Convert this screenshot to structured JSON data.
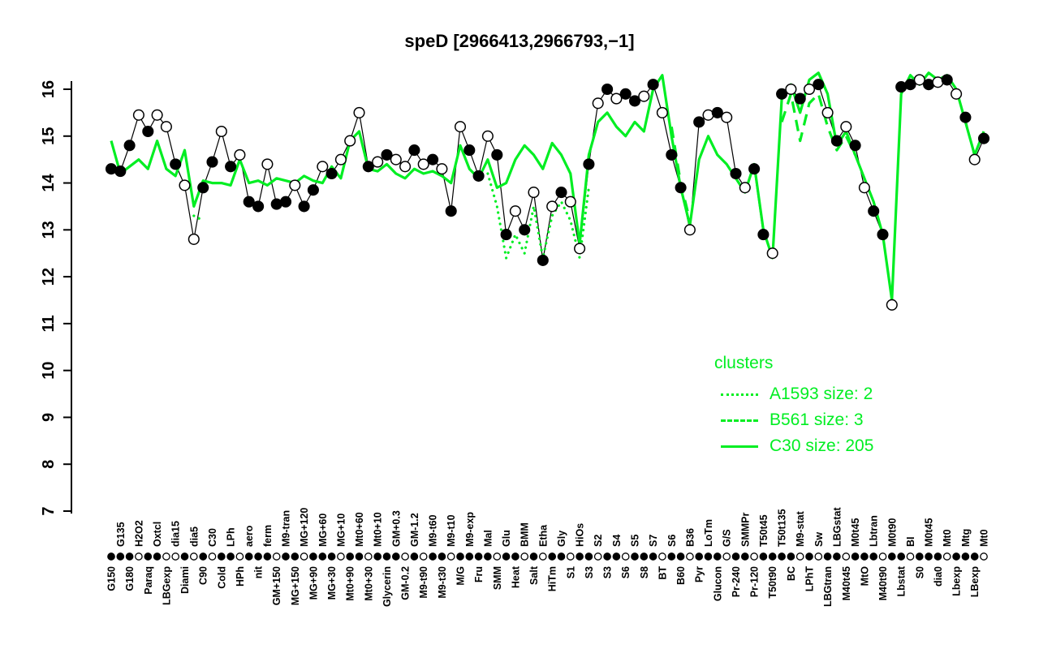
{
  "title": "speD [2966413,2966793,−1]",
  "colors": {
    "cluster": "#00ee22",
    "gene": "#000000",
    "background": "#ffffff"
  },
  "legend": {
    "title": "clusters",
    "entries": [
      {
        "label": "A1593 size: 2",
        "style": "dotted"
      },
      {
        "label": "B561 size: 3",
        "style": "dashed"
      },
      {
        "label": "C30 size: 205",
        "style": "solid"
      }
    ]
  },
  "chart_data": {
    "type": "line",
    "title": "speD [2966413,2966793,−1]",
    "ylabel": "",
    "xlabel": "",
    "ylim": [
      7,
      16.5
    ],
    "yticks": [
      7,
      8,
      9,
      10,
      11,
      12,
      13,
      14,
      15,
      16
    ],
    "grid": false,
    "legend_position": "right-middle",
    "categories": [
      "G150",
      "G135",
      "G180",
      "H2O2",
      "Paraq",
      "Oxtcl",
      "LBGexp",
      "dia15",
      "Diami",
      "dia5",
      "C90",
      "C30",
      "Cold",
      "LPh",
      "HPh",
      "aero",
      "nit",
      "ferm",
      "GM+150",
      "M9-tran",
      "MG+150",
      "MG+120",
      "MG+90",
      "MG+60",
      "MG+30",
      "MG+10",
      "Mt0+90",
      "Mt0+60",
      "Mt0+30",
      "Mt0+10",
      "Glycerin",
      "GM+0.3",
      "GM-0.2",
      "GM-1.2",
      "M9-t90",
      "M9-t60",
      "M9-t30",
      "M9-t10",
      "M/G",
      "M9-exp",
      "Fru",
      "Mal",
      "SMM",
      "Glu",
      "Heat",
      "BMM",
      "Salt",
      "Etha",
      "HiTm",
      "Gly",
      "S1",
      "HiOs",
      "S3",
      "S2",
      "S3",
      "S4",
      "S6",
      "S5",
      "S8",
      "S7",
      "BT",
      "S6",
      "B60",
      "B36",
      "Pyr",
      "LoTm",
      "Glucon",
      "G/S",
      "Pr-240",
      "SMMPr",
      "Pr-120",
      "T50t45",
      "T50t90",
      "T50t135",
      "BC",
      "M9-stat",
      "LPhT",
      "Sw",
      "LBGtran",
      "LBGstat",
      "M40t45",
      "M0t45",
      "MtO",
      "Lbtran",
      "M40t90",
      "M0t90",
      "Lbstat",
      "BI",
      "S0",
      "M0t45",
      "dia0",
      "Mt0",
      "Lbexp",
      "Mtg",
      "LBexp",
      "Mt0"
    ],
    "series": [
      {
        "name": "speD",
        "role": "gene",
        "color": "#000000",
        "marker": "circle",
        "values": [
          14.3,
          14.25,
          14.8,
          15.45,
          15.1,
          15.45,
          15.2,
          14.4,
          13.95,
          12.8,
          13.9,
          14.45,
          15.1,
          14.35,
          14.6,
          13.6,
          13.5,
          14.4,
          13.55,
          13.6,
          13.95,
          13.5,
          13.85,
          14.35,
          14.2,
          14.5,
          14.9,
          15.5,
          14.35,
          14.45,
          14.6,
          14.5,
          14.35,
          14.7,
          14.4,
          14.5,
          14.3,
          13.4,
          15.2,
          14.7,
          14.15,
          15.0,
          14.6,
          12.9,
          13.4,
          13.0,
          13.8,
          12.35,
          13.5,
          13.8,
          13.6,
          12.6,
          14.4,
          15.7,
          16.0,
          15.8,
          15.9,
          15.75,
          15.85,
          16.1,
          15.5,
          14.6,
          13.9,
          13.0,
          15.3,
          15.45,
          15.5,
          15.4,
          14.2,
          13.9,
          14.3,
          12.9,
          12.5,
          15.9,
          16.0,
          15.8,
          16.0,
          16.1,
          15.5,
          14.9,
          15.2,
          14.8,
          13.9,
          13.4,
          12.9,
          11.4,
          16.05,
          16.1,
          16.2,
          16.1,
          16.15,
          16.2,
          15.9,
          15.4,
          14.5,
          14.95
        ],
        "filled": [
          1,
          1,
          1,
          0,
          1,
          0,
          0,
          1,
          0,
          0,
          1,
          1,
          0,
          1,
          0,
          1,
          1,
          0,
          1,
          1,
          0,
          1,
          1,
          0,
          1,
          0,
          0,
          0,
          1,
          0,
          1,
          0,
          0,
          1,
          0,
          1,
          0,
          1,
          0,
          1,
          1,
          0,
          1,
          1,
          0,
          1,
          0,
          1,
          0,
          1,
          0,
          0,
          1,
          0,
          1,
          0,
          1,
          1,
          0,
          1,
          0,
          1,
          1,
          0,
          1,
          0,
          1,
          0,
          1,
          0,
          1,
          1,
          0,
          1,
          0,
          1,
          0,
          1,
          0,
          1,
          0,
          1,
          0,
          1,
          1,
          0,
          1,
          1,
          0,
          1,
          0,
          1,
          0,
          1,
          0,
          1
        ]
      },
      {
        "name": "C30 size: 205",
        "role": "cluster",
        "style": "solid",
        "color": "#00ee22",
        "values": [
          14.9,
          14.2,
          14.35,
          14.5,
          14.3,
          14.9,
          14.3,
          14.15,
          14.7,
          13.5,
          14.05,
          14.0,
          14.0,
          13.95,
          14.5,
          14.0,
          14.05,
          13.95,
          14.1,
          14.05,
          14.0,
          14.15,
          14.05,
          14.0,
          14.35,
          14.1,
          14.9,
          15.1,
          14.3,
          14.25,
          14.4,
          14.2,
          14.1,
          14.3,
          14.2,
          14.25,
          14.15,
          14.0,
          14.8,
          14.3,
          14.1,
          14.5,
          13.9,
          14.0,
          14.5,
          14.8,
          14.6,
          14.3,
          14.85,
          14.6,
          14.2,
          12.7,
          14.6,
          15.3,
          15.5,
          15.2,
          15.0,
          15.3,
          15.1,
          16.0,
          16.3,
          15.0,
          13.9,
          13.1,
          14.5,
          15.0,
          14.6,
          14.4,
          14.1,
          13.8,
          14.4,
          13.0,
          12.4,
          15.8,
          16.1,
          15.5,
          16.2,
          16.35,
          15.9,
          14.8,
          15.1,
          14.6,
          14.1,
          13.6,
          12.9,
          11.5,
          15.9,
          16.3,
          16.1,
          16.35,
          16.2,
          16.3,
          16.0,
          15.3,
          14.6,
          15.1
        ]
      },
      {
        "name": "B561 size: 3",
        "role": "cluster",
        "style": "dashed",
        "color": "#00ee22",
        "values": [
          null,
          null,
          null,
          null,
          null,
          null,
          null,
          null,
          null,
          null,
          null,
          null,
          null,
          null,
          null,
          null,
          null,
          null,
          null,
          null,
          null,
          null,
          null,
          null,
          null,
          null,
          null,
          null,
          null,
          null,
          null,
          null,
          null,
          null,
          null,
          null,
          null,
          null,
          null,
          null,
          null,
          null,
          null,
          null,
          null,
          null,
          null,
          null,
          null,
          null,
          null,
          null,
          null,
          null,
          null,
          null,
          null,
          null,
          null,
          null,
          null,
          15.2,
          14.0,
          13.2,
          null,
          null,
          null,
          null,
          null,
          null,
          null,
          null,
          null,
          15.3,
          15.9,
          14.9,
          15.7,
          15.9,
          15.2,
          14.7,
          15.0,
          14.6,
          null,
          null,
          null,
          null,
          null,
          null,
          null,
          null,
          null,
          null,
          null,
          null,
          null,
          null
        ]
      },
      {
        "name": "A1593 size: 2",
        "role": "cluster",
        "style": "dotted",
        "color": "#00ee22",
        "values": [
          null,
          null,
          null,
          null,
          null,
          null,
          null,
          null,
          null,
          13.3,
          13.2,
          null,
          null,
          null,
          null,
          null,
          null,
          null,
          null,
          null,
          null,
          null,
          null,
          null,
          null,
          null,
          null,
          null,
          null,
          null,
          null,
          null,
          null,
          null,
          null,
          null,
          null,
          null,
          null,
          null,
          null,
          14.2,
          13.5,
          12.4,
          12.9,
          12.5,
          13.5,
          12.4,
          13.3,
          13.6,
          13.2,
          12.4,
          13.9,
          null,
          null,
          null,
          null,
          null,
          null,
          null,
          null,
          null,
          null,
          null,
          null,
          null,
          null,
          null,
          null,
          null,
          null,
          null,
          null,
          null,
          null,
          null,
          null,
          null,
          null,
          null,
          null,
          null,
          null,
          null,
          null,
          null,
          null,
          null,
          null,
          null,
          null,
          null,
          null,
          null,
          null,
          null
        ]
      }
    ],
    "strip_filled": [
      1,
      1,
      1,
      0,
      1,
      1,
      0,
      0,
      1,
      0,
      1,
      0,
      1,
      1,
      0,
      1,
      1,
      1,
      0,
      1,
      1,
      0,
      1,
      1,
      1,
      0,
      1,
      1,
      0,
      1,
      1,
      1,
      0,
      1,
      0,
      1,
      1,
      0,
      1,
      1,
      1,
      1,
      0,
      1,
      1,
      0,
      1,
      0,
      1,
      1,
      0,
      1,
      1,
      0,
      1,
      1,
      0,
      1,
      1,
      1,
      0,
      1,
      1,
      0,
      1,
      1,
      1,
      0,
      1,
      1,
      0,
      1,
      1,
      1,
      1,
      0,
      1,
      0,
      1,
      1,
      0,
      1,
      1,
      1,
      0,
      1,
      1,
      0,
      1,
      1,
      1,
      0,
      1,
      1,
      1,
      0
    ]
  }
}
